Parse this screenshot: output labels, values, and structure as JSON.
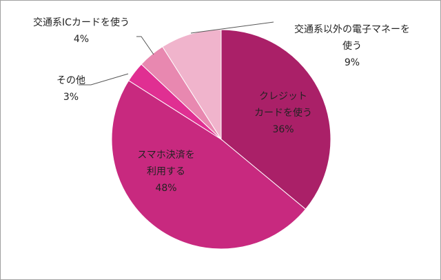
{
  "chart_data": {
    "type": "pie",
    "title": "",
    "start_angle_deg": 0,
    "direction": "clockwise",
    "categories": [
      "クレジットカードを使う",
      "スマホ決済を利用する",
      "その他",
      "交通系ICカードを使う",
      "交通系以外の電子マネーを使う"
    ],
    "values": [
      36,
      48,
      3,
      4,
      9
    ],
    "unit": "%",
    "colors": [
      "#aa2068",
      "#c8297f",
      "#e02f92",
      "#e888b0",
      "#f0b4cc"
    ],
    "labels": [
      {
        "line1": "クレジット",
        "line2": "カードを使う",
        "pct": "36%"
      },
      {
        "line1": "スマホ決済を",
        "line2": "利用する",
        "pct": "48%"
      },
      {
        "line1": "その他",
        "pct": "3%"
      },
      {
        "line1": "交通系ICカードを使う",
        "pct": "4%"
      },
      {
        "line1": "交通系以外の電子マネーを",
        "line2": "使う",
        "pct": "9%"
      }
    ],
    "legend": "none"
  }
}
